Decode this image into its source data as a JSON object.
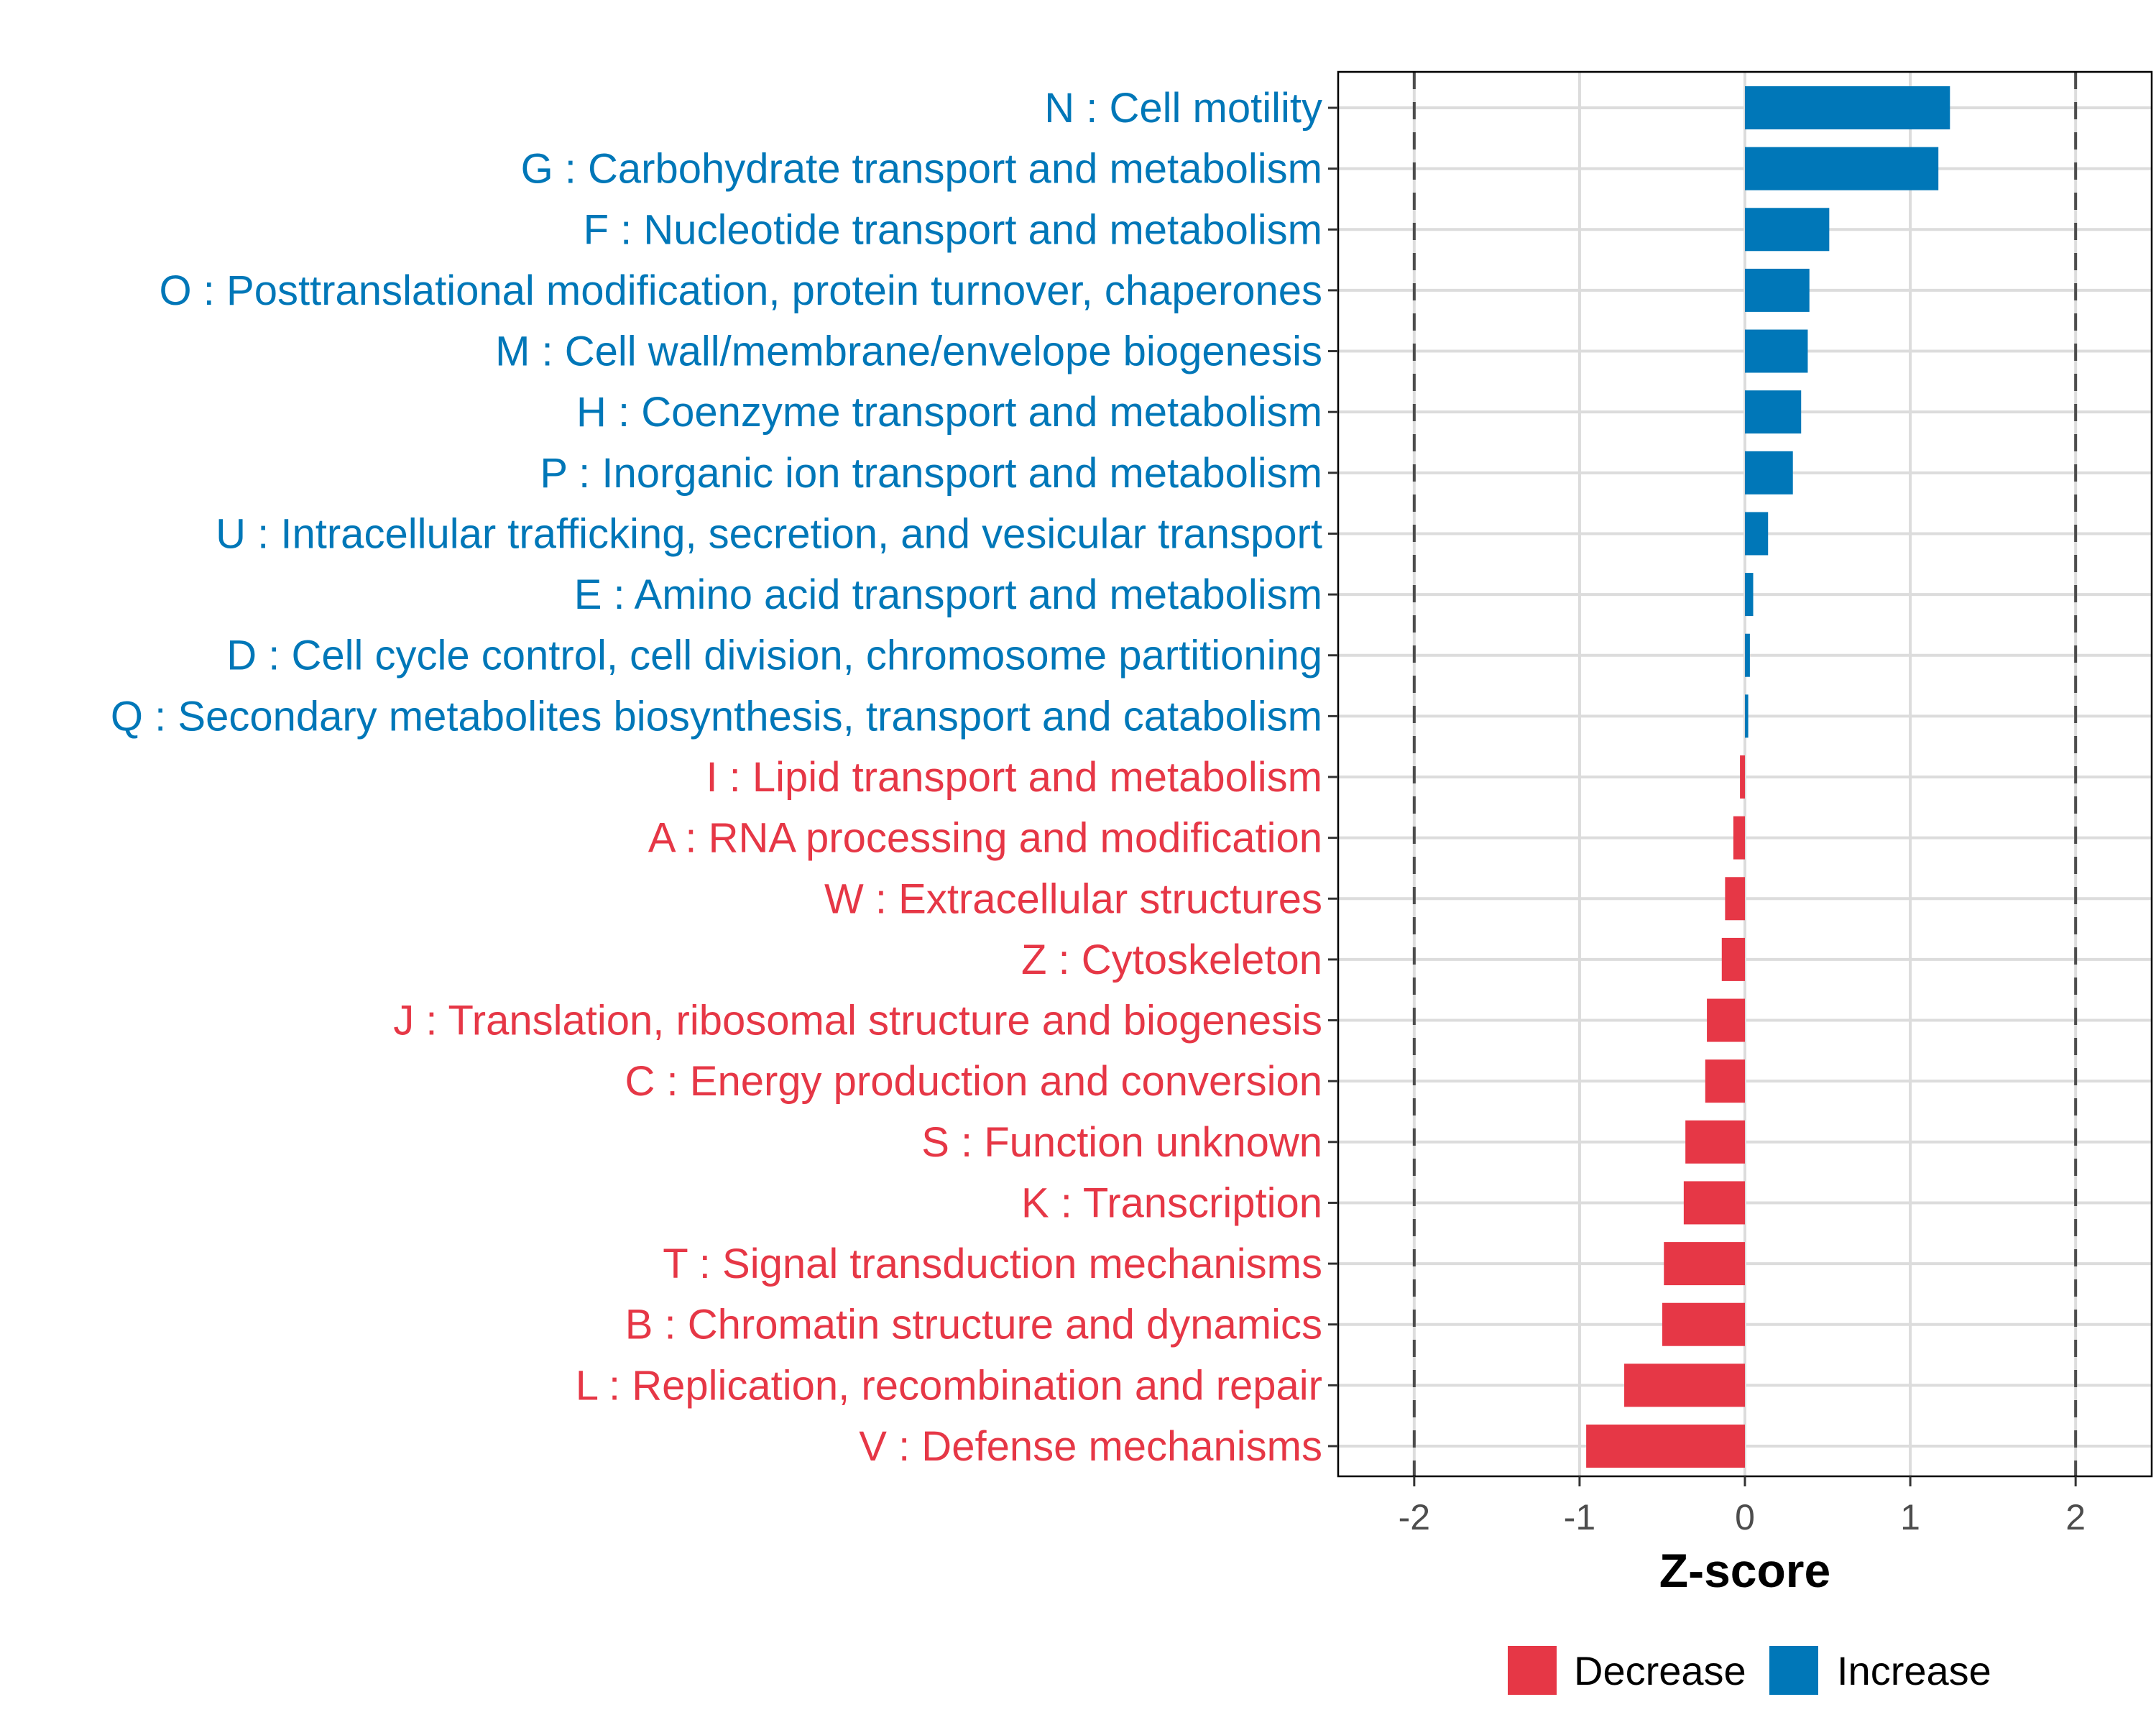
{
  "chart_data": {
    "type": "bar",
    "orientation": "horizontal",
    "title": "",
    "xlabel": "Z-score",
    "ylabel": "",
    "xlim": [
      -2.46,
      2.46
    ],
    "x_ticks": [
      -2,
      -1,
      0,
      1,
      2
    ],
    "x_tick_labels": [
      "-2",
      "-1",
      "0",
      "1",
      "2"
    ],
    "reference_lines": [
      -2,
      2
    ],
    "grid": true,
    "legend": {
      "position": "bottom",
      "entries": [
        {
          "label": "Decrease",
          "color": "#E63746"
        },
        {
          "label": "Increase",
          "color": "#0077B8"
        }
      ]
    },
    "categories": [
      "N : Cell motility",
      "G : Carbohydrate transport and metabolism",
      "F : Nucleotide transport and metabolism",
      "O : Posttranslational modification, protein turnover, chaperones",
      "M : Cell wall/membrane/envelope biogenesis",
      "H : Coenzyme transport and metabolism",
      "P : Inorganic ion transport and metabolism",
      "U : Intracellular trafficking, secretion, and vesicular transport",
      "E : Amino acid transport and metabolism",
      "D : Cell cycle control, cell division, chromosome partitioning",
      "Q : Secondary metabolites biosynthesis, transport and catabolism",
      "I : Lipid transport and metabolism",
      "A : RNA processing and modification",
      "W : Extracellular structures",
      "Z : Cytoskeleton",
      "J : Translation, ribosomal structure and biogenesis",
      "C : Energy production and conversion",
      "S : Function unknown",
      "K : Transcription",
      "T : Signal transduction mechanisms",
      "B : Chromatin structure and dynamics",
      "L : Replication, recombination and repair",
      "V : Defense mechanisms"
    ],
    "values": [
      1.24,
      1.17,
      0.51,
      0.39,
      0.38,
      0.34,
      0.29,
      0.14,
      0.05,
      0.03,
      0.02,
      -0.03,
      -0.07,
      -0.12,
      -0.14,
      -0.23,
      -0.24,
      -0.36,
      -0.37,
      -0.49,
      -0.5,
      -0.73,
      -0.96
    ],
    "groups": [
      "Increase",
      "Increase",
      "Increase",
      "Increase",
      "Increase",
      "Increase",
      "Increase",
      "Increase",
      "Increase",
      "Increase",
      "Increase",
      "Decrease",
      "Decrease",
      "Decrease",
      "Decrease",
      "Decrease",
      "Decrease",
      "Decrease",
      "Decrease",
      "Decrease",
      "Decrease",
      "Decrease",
      "Decrease"
    ],
    "colors": {
      "Increase": "#0077B8",
      "Decrease": "#E63746"
    }
  }
}
